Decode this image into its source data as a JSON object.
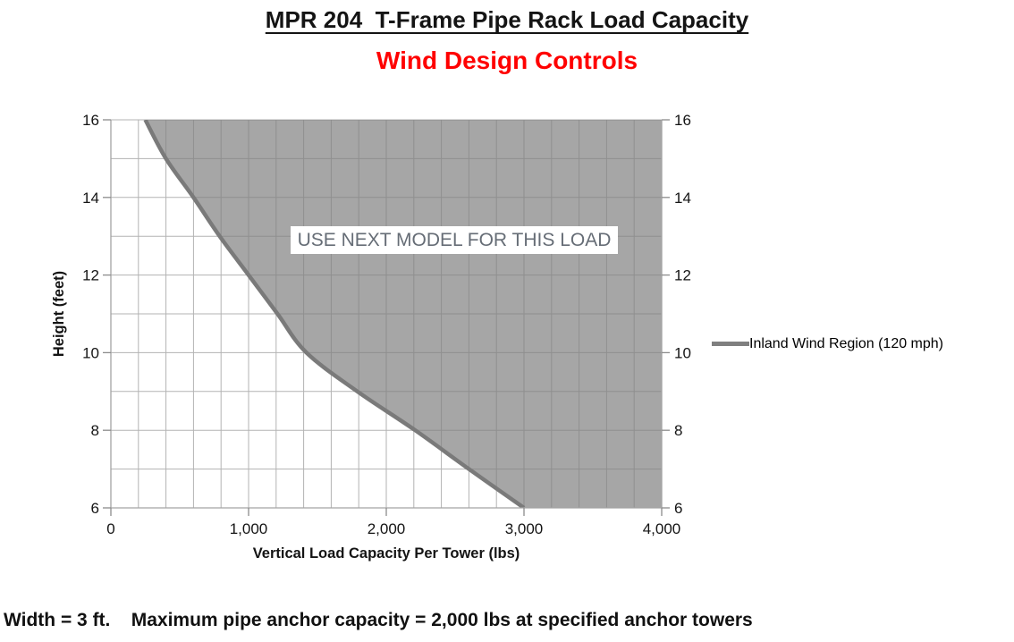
{
  "page": {
    "title": "MPR 204  T-Frame Pipe Rack Load Capacity",
    "subtitle": "Wind Design Controls",
    "caption": "Width = 3 ft.    Maximum pipe anchor capacity = 2,000 lbs at specified anchor towers",
    "colors": {
      "title": "#141414",
      "subtitle": "#ff0000",
      "caption": "#111111"
    }
  },
  "chart_data": {
    "type": "area",
    "title": "",
    "xlabel": "Vertical Load Capacity Per Tower (lbs)",
    "ylabel": "Height (feet)",
    "xlim": [
      0,
      4000
    ],
    "ylim": [
      6,
      16
    ],
    "x_major_ticks": [
      0,
      1000,
      2000,
      3000,
      4000
    ],
    "x_major_tick_labels": [
      "0",
      "1,000",
      "2,000",
      "3,000",
      "4,000"
    ],
    "x_minor_step": 200,
    "y_major_ticks": [
      16,
      14,
      12,
      10,
      8,
      6
    ],
    "y_major_tick_labels": [
      "16",
      "14",
      "12",
      "10",
      "8",
      "6"
    ],
    "y_minor_step": 1,
    "grid": true,
    "y_axis_labels_both_sides": true,
    "legend": {
      "label": "Inland Wind Region (120 mph)",
      "position": "right"
    },
    "series": [
      {
        "name": "Inland Wind Region (120 mph)",
        "color": "#7a7a7a",
        "x_capacity_lbs": [
          250,
          400,
          600,
          790,
          1000,
          1210,
          1420,
          1790,
          2210,
          2600,
          3000
        ],
        "y_height_ft": [
          16,
          15,
          14,
          13,
          12,
          11,
          10,
          9,
          8,
          7,
          6
        ]
      }
    ],
    "shaded_region": {
      "annotation": "USE NEXT MODEL FOR THIS LOAD",
      "fill": "rgba(128,128,128,0.7)",
      "extent": "region above and right of the curve, bounded by y=16 top, x=4000 right, and y=6 floor from x=3000 to x=4000"
    },
    "colors": {
      "grid": "#b3b3b3",
      "axis": "#a3a3a3",
      "tick": "#8c8c8c",
      "curve": "#7a7a7a",
      "region_fill": "rgba(128,128,128,0.7)"
    }
  }
}
